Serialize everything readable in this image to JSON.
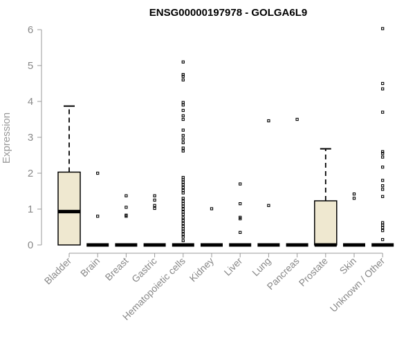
{
  "chart_data": {
    "type": "box",
    "title": "ENSG00000197978 - GOLGA6L9",
    "xlabel": "",
    "ylabel": "Expression",
    "ylim": [
      0,
      6.2
    ],
    "yticks": [
      0,
      1,
      2,
      3,
      4,
      5,
      6
    ],
    "box_fill": "#efe8d0",
    "categories": [
      "Bladder",
      "Brain",
      "Breast",
      "Gastric",
      "Hematopoietic cells",
      "Kidney",
      "Liver",
      "Lung",
      "Pancreas",
      "Prostate",
      "Skin",
      "Unknown / Other"
    ],
    "boxes": [
      {
        "q1": 0,
        "median": 0.93,
        "q3": 2.03,
        "whisker_low": 0,
        "whisker_high": 3.87,
        "outliers": []
      },
      {
        "q1": 0,
        "median": 0,
        "q3": 0,
        "whisker_low": 0,
        "whisker_high": 0,
        "outliers": [
          0.8,
          2.0
        ]
      },
      {
        "q1": 0,
        "median": 0,
        "q3": 0,
        "whisker_low": 0,
        "whisker_high": 0,
        "outliers": [
          0.8,
          0.83,
          1.05,
          1.37
        ]
      },
      {
        "q1": 0,
        "median": 0,
        "q3": 0,
        "whisker_low": 0,
        "whisker_high": 0,
        "outliers": [
          1.02,
          1.1,
          1.25,
          1.37
        ]
      },
      {
        "q1": 0,
        "median": 0,
        "q3": 0,
        "whisker_low": 0,
        "whisker_high": 0,
        "outliers": [
          0.12,
          0.22,
          0.3,
          0.38,
          0.45,
          0.52,
          0.6,
          0.68,
          0.76,
          0.85,
          0.92,
          1.0,
          1.08,
          1.15,
          1.22,
          1.3,
          1.45,
          1.52,
          1.6,
          1.68,
          1.75,
          1.82,
          1.88,
          2.62,
          2.7,
          2.85,
          2.95,
          3.05,
          3.2,
          3.5,
          3.6,
          3.75,
          3.9,
          3.97,
          4.6,
          4.7,
          4.75,
          5.1
        ]
      },
      {
        "q1": 0,
        "median": 0,
        "q3": 0,
        "whisker_low": 0,
        "whisker_high": 0,
        "outliers": [
          1.01
        ]
      },
      {
        "q1": 0,
        "median": 0,
        "q3": 0,
        "whisker_low": 0,
        "whisker_high": 0,
        "outliers": [
          0.35,
          0.73,
          0.77,
          1.15,
          1.7
        ]
      },
      {
        "q1": 0,
        "median": 0,
        "q3": 0,
        "whisker_low": 0,
        "whisker_high": 0,
        "outliers": [
          1.1,
          3.46
        ]
      },
      {
        "q1": 0,
        "median": 0,
        "q3": 0,
        "whisker_low": 0,
        "whisker_high": 0,
        "outliers": [
          3.5
        ]
      },
      {
        "q1": 0,
        "median": 0,
        "q3": 1.23,
        "whisker_low": 0,
        "whisker_high": 2.68,
        "outliers": []
      },
      {
        "q1": 0,
        "median": 0,
        "q3": 0,
        "whisker_low": 0,
        "whisker_high": 0,
        "outliers": [
          1.3,
          1.42
        ]
      },
      {
        "q1": 0,
        "median": 0,
        "q3": 0,
        "whisker_low": 0,
        "whisker_high": 0,
        "outliers": [
          0.15,
          0.4,
          0.48,
          0.55,
          0.62,
          1.35,
          1.55,
          1.65,
          1.8,
          2.17,
          2.45,
          2.55,
          2.6,
          3.7,
          4.35,
          4.5,
          6.03
        ]
      }
    ]
  }
}
